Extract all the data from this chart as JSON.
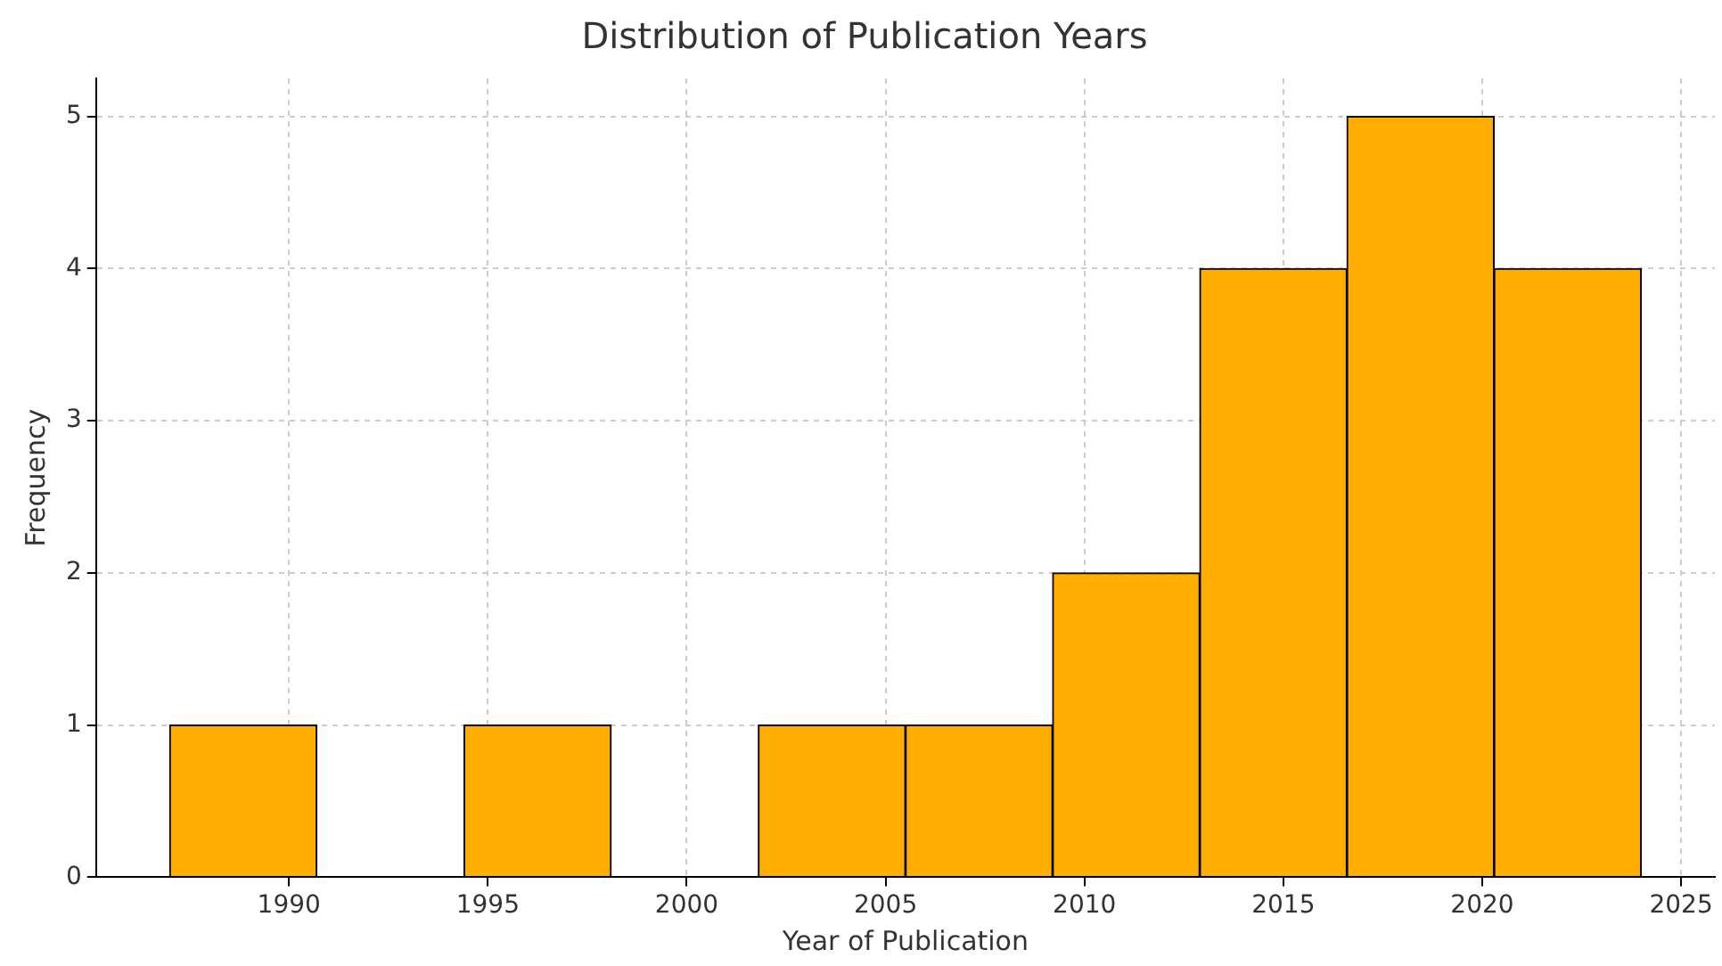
{
  "chart_data": {
    "type": "histogram",
    "title": "Distribution of Publication Years",
    "xlabel": "Year of Publication",
    "ylabel": "Frequency",
    "bins": [
      1987,
      1990.7,
      1994.4,
      1998.1,
      2001.8,
      2005.5,
      2009.2,
      2012.9,
      2016.6,
      2020.3,
      2024
    ],
    "values": [
      1,
      0,
      1,
      0,
      1,
      1,
      2,
      4,
      5,
      4
    ],
    "color": "#ffad00",
    "xlim": [
      1985.15,
      2025.85
    ],
    "xticks": [
      1990,
      1995,
      2000,
      2005,
      2010,
      2015,
      2020,
      2025
    ],
    "ylim": [
      0,
      5.25
    ],
    "yticks": [
      0,
      1,
      2,
      3,
      4,
      5
    ],
    "grid": true
  }
}
